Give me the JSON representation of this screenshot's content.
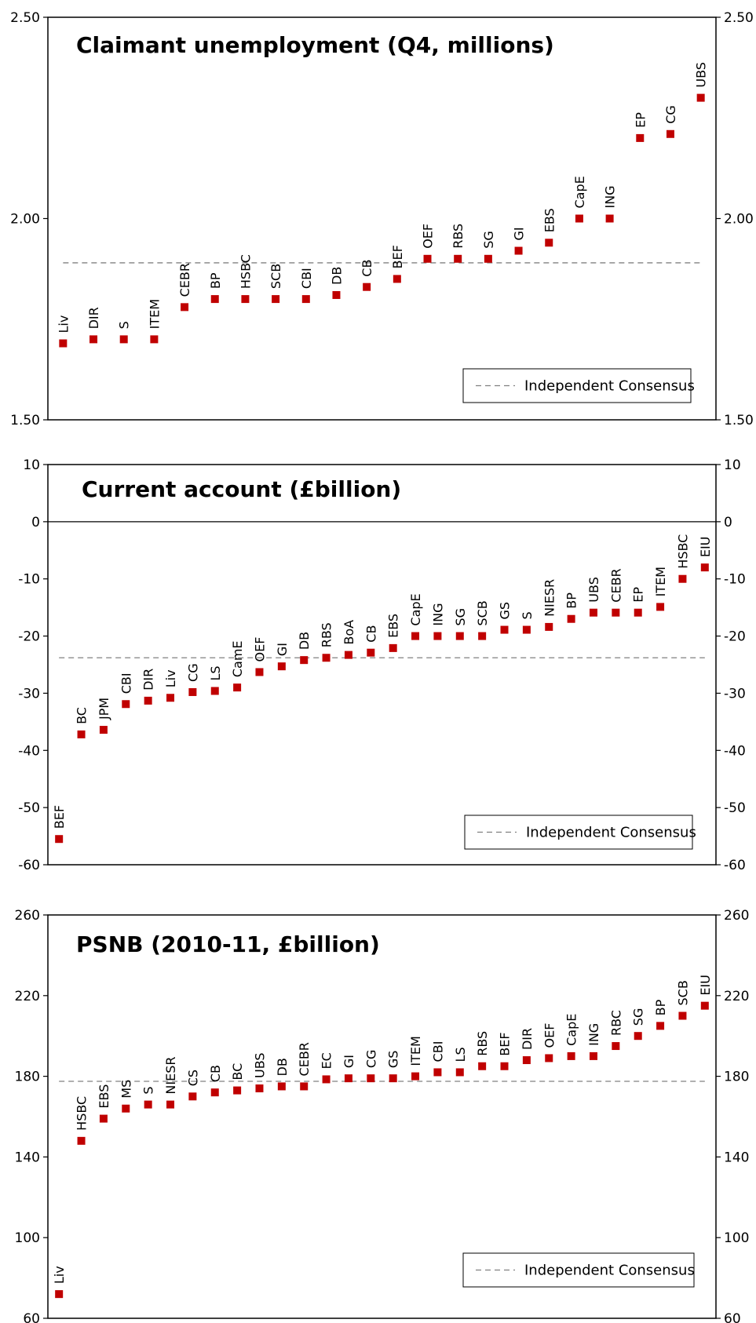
{
  "chart_data": [
    {
      "type": "scatter",
      "title": "Claimant unemployment  (Q4, millions)",
      "ylim": [
        1.5,
        2.5
      ],
      "yticks": [
        1.5,
        2.0,
        2.5
      ],
      "ytick_labels": [
        "1.50",
        "2.00",
        "2.50"
      ],
      "consensus": 1.89,
      "legend": "Independent Consensus",
      "legend_position": "bottom-right",
      "zero_line": false,
      "series": [
        {
          "labels": [
            "Liv",
            "DIR",
            "S",
            "ITEM",
            "CEBR",
            "BP",
            "HSBC",
            "SCB",
            "CBI",
            "DB",
            "CB",
            "BEF",
            "OEF",
            "RBS",
            "SG",
            "GI",
            "EBS",
            "CapE",
            "ING",
            "EP",
            "CG",
            "UBS"
          ],
          "values": [
            1.69,
            1.7,
            1.7,
            1.7,
            1.78,
            1.8,
            1.8,
            1.8,
            1.8,
            1.81,
            1.83,
            1.85,
            1.9,
            1.9,
            1.9,
            1.92,
            1.94,
            2.0,
            2.0,
            2.2,
            2.21,
            2.3
          ]
        }
      ]
    },
    {
      "type": "scatter",
      "title": "Current account (£billion)",
      "ylim": [
        -60,
        10
      ],
      "yticks": [
        -60,
        -50,
        -40,
        -30,
        -20,
        -10,
        0,
        10
      ],
      "ytick_labels": [
        "-60",
        "-50",
        "-40",
        "-30",
        "-20",
        "-10",
        "0",
        "10"
      ],
      "consensus": -23.8,
      "legend": "Independent Consensus",
      "legend_position": "bottom-right",
      "zero_line": true,
      "series": [
        {
          "labels": [
            "BEF",
            "BC",
            "JPM",
            "CBI",
            "DIR",
            "Liv",
            "CG",
            "LS",
            "CamE",
            "OEF",
            "GI",
            "DB",
            "RBS",
            "BoA",
            "CB",
            "EBS",
            "CapE",
            "ING",
            "SG",
            "SCB",
            "GS",
            "S",
            "NIESR",
            "BP",
            "UBS",
            "CEBR",
            "EP",
            "ITEM",
            "HSBC",
            "EIU"
          ],
          "values": [
            -55.5,
            -37.2,
            -36.4,
            -31.9,
            -31.3,
            -30.8,
            -29.8,
            -29.6,
            -29.0,
            -26.3,
            -25.3,
            -24.2,
            -23.8,
            -23.3,
            -22.9,
            -22.1,
            -20.0,
            -20.0,
            -20.0,
            -20.0,
            -18.9,
            -18.9,
            -18.4,
            -17.0,
            -15.9,
            -15.9,
            -15.9,
            -14.9,
            -10.0,
            -8.0
          ]
        }
      ]
    },
    {
      "type": "scatter",
      "title": "PSNB (2010-11, £billion)",
      "ylim": [
        60,
        260
      ],
      "yticks": [
        60,
        100,
        140,
        180,
        220,
        260
      ],
      "ytick_labels": [
        "60",
        "100",
        "140",
        "180",
        "220",
        "260"
      ],
      "consensus": 177.5,
      "legend": "Independent Consensus",
      "legend_position": "bottom-right",
      "zero_line": false,
      "series": [
        {
          "labels": [
            "Liv",
            "HSBC",
            "EBS",
            "MS",
            "S",
            "NIESR",
            "CS",
            "CB",
            "BC",
            "UBS",
            "DB",
            "CEBR",
            "EC",
            "GI",
            "CG",
            "GS",
            "ITEM",
            "CBI",
            "LS",
            "RBS",
            "BEF",
            "DIR",
            "OEF",
            "CapE",
            "ING",
            "RBC",
            "SG",
            "BP",
            "SCB",
            "EIU"
          ],
          "values": [
            72,
            148,
            159,
            164,
            166,
            166,
            170,
            172,
            173,
            174,
            175,
            175,
            178.5,
            179,
            179,
            179,
            180,
            182,
            182,
            185,
            185,
            188,
            189,
            190,
            190,
            195,
            200,
            205,
            210,
            215
          ]
        }
      ]
    }
  ],
  "colors": {
    "marker": "#c00000",
    "consensus_line": "#808080",
    "axis": "#000000"
  }
}
